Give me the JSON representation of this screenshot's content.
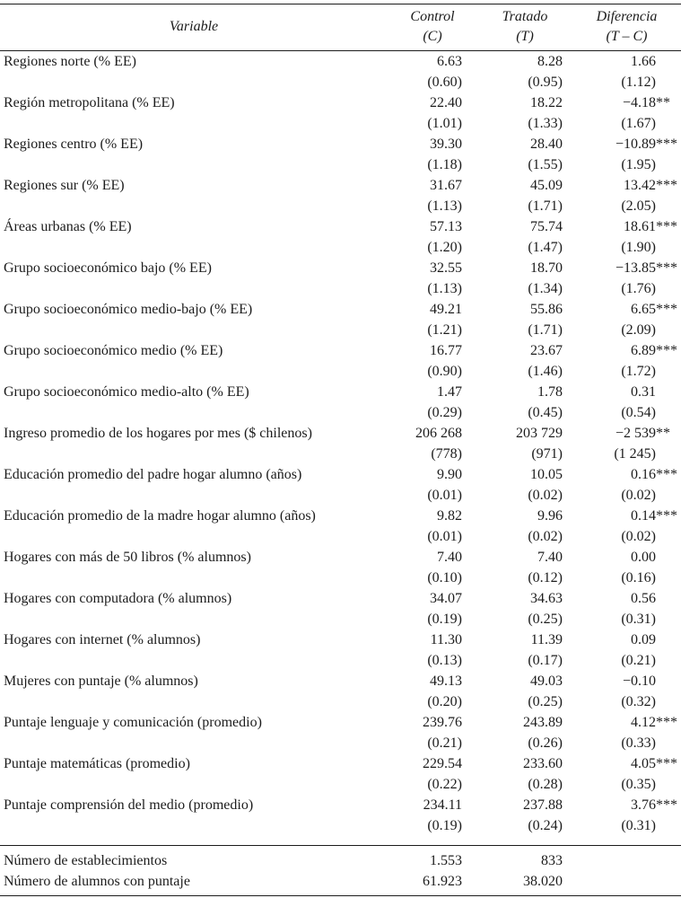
{
  "table": {
    "headers": {
      "variable": "Variable",
      "control_line1": "Control",
      "control_line2": "(C)",
      "tratado_line1": "Tratado",
      "tratado_line2": "(T)",
      "diferencia_line1": "Diferencia",
      "diferencia_line2": "(T – C)"
    },
    "rows": [
      {
        "variable": "Regiones norte (% EE)",
        "values": [
          "6.63",
          "8.28",
          "1.66"
        ],
        "se": [
          "(0.60)",
          "(0.95)",
          "(1.12)"
        ]
      },
      {
        "variable": "Región metropolitana (% EE)",
        "values": [
          "22.40",
          "18.22",
          "−4.18**"
        ],
        "se": [
          "(1.01)",
          "(1.33)",
          "(1.67)"
        ]
      },
      {
        "variable": "Regiones centro (% EE)",
        "values": [
          "39.30",
          "28.40",
          "−10.89***"
        ],
        "se": [
          "(1.18)",
          "(1.55)",
          "(1.95)"
        ]
      },
      {
        "variable": "Regiones sur (% EE)",
        "values": [
          "31.67",
          "45.09",
          "13.42***"
        ],
        "se": [
          "(1.13)",
          "(1.71)",
          "(2.05)"
        ]
      },
      {
        "variable": "Áreas urbanas (% EE)",
        "values": [
          "57.13",
          "75.74",
          "18.61***"
        ],
        "se": [
          "(1.20)",
          "(1.47)",
          "(1.90)"
        ]
      },
      {
        "variable": "Grupo socioeconómico bajo (% EE)",
        "values": [
          "32.55",
          "18.70",
          "−13.85***"
        ],
        "se": [
          "(1.13)",
          "(1.34)",
          "(1.76)"
        ]
      },
      {
        "variable": "Grupo socioeconómico medio-bajo (% EE)",
        "values": [
          "49.21",
          "55.86",
          "6.65***"
        ],
        "se": [
          "(1.21)",
          "(1.71)",
          "(2.09)"
        ]
      },
      {
        "variable": "Grupo socioeconómico medio (% EE)",
        "values": [
          "16.77",
          "23.67",
          "6.89***"
        ],
        "se": [
          "(0.90)",
          "(1.46)",
          "(1.72)"
        ]
      },
      {
        "variable": "Grupo socioeconómico medio-alto (% EE)",
        "values": [
          "1.47",
          "1.78",
          "0.31"
        ],
        "se": [
          "(0.29)",
          "(0.45)",
          "(0.54)"
        ]
      },
      {
        "variable": "Ingreso promedio de los hogares por mes ($ chilenos)",
        "values": [
          "206 268",
          "203 729",
          "−2 539**"
        ],
        "se": [
          "(778)",
          "(971)",
          "(1 245)"
        ]
      },
      {
        "variable": "Educación promedio del padre hogar alumno (años)",
        "values": [
          "9.90",
          "10.05",
          "0.16***"
        ],
        "se": [
          "(0.01)",
          "(0.02)",
          "(0.02)"
        ]
      },
      {
        "variable": "Educación promedio de la madre hogar alumno (años)",
        "values": [
          "9.82",
          "9.96",
          "0.14***"
        ],
        "se": [
          "(0.01)",
          "(0.02)",
          "(0.02)"
        ]
      },
      {
        "variable": "Hogares con más de 50 libros (% alumnos)",
        "values": [
          "7.40",
          "7.40",
          "0.00"
        ],
        "se": [
          "(0.10)",
          "(0.12)",
          "(0.16)"
        ]
      },
      {
        "variable": "Hogares con computadora (% alumnos)",
        "values": [
          "34.07",
          "34.63",
          "0.56"
        ],
        "se": [
          "(0.19)",
          "(0.25)",
          "(0.31)"
        ]
      },
      {
        "variable": "Hogares con internet (% alumnos)",
        "values": [
          "11.30",
          "11.39",
          "0.09"
        ],
        "se": [
          "(0.13)",
          "(0.17)",
          "(0.21)"
        ]
      },
      {
        "variable": "Mujeres con puntaje (% alumnos)",
        "values": [
          "49.13",
          "49.03",
          "−0.10"
        ],
        "se": [
          "(0.20)",
          "(0.25)",
          "(0.32)"
        ]
      },
      {
        "variable": "Puntaje lenguaje y comunicación (promedio)",
        "values": [
          "239.76",
          "243.89",
          "4.12***"
        ],
        "se": [
          "(0.21)",
          "(0.26)",
          "(0.33)"
        ]
      },
      {
        "variable": "Puntaje matemáticas (promedio)",
        "values": [
          "229.54",
          "233.60",
          "4.05***"
        ],
        "se": [
          "(0.22)",
          "(0.28)",
          "(0.35)"
        ]
      },
      {
        "variable": "Puntaje comprensión del medio (promedio)",
        "values": [
          "234.11",
          "237.88",
          "3.76***"
        ],
        "se": [
          "(0.19)",
          "(0.24)",
          "(0.31)"
        ]
      }
    ],
    "footer_rows": [
      {
        "variable": "Número de establecimientos",
        "values": [
          "1.553",
          "833",
          ""
        ]
      },
      {
        "variable": "Número de alumnos con puntaje",
        "values": [
          "61.923",
          "38.020",
          ""
        ]
      }
    ]
  }
}
